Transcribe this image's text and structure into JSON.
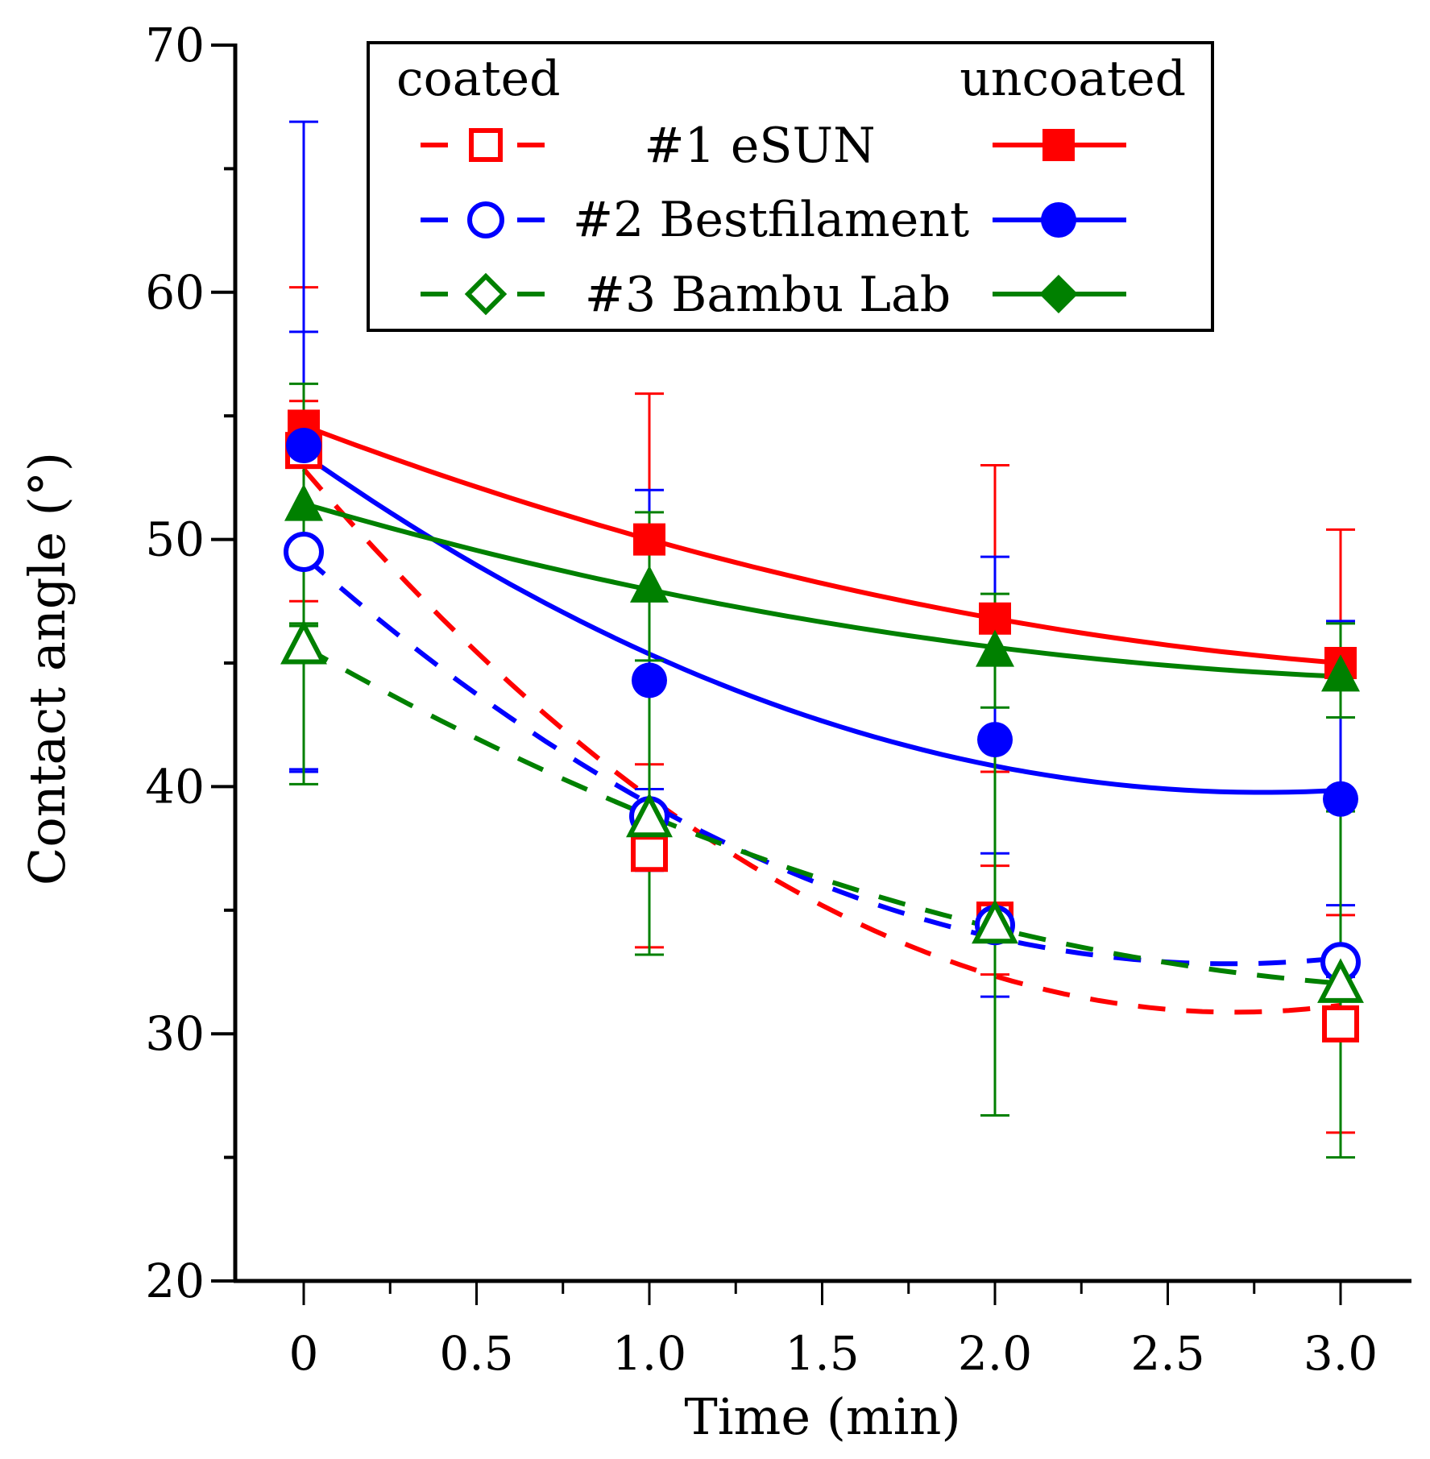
{
  "chart_data": {
    "type": "line",
    "title": "",
    "xlabel": "Time (min)",
    "ylabel": "Contact angle (°)",
    "xlim": [
      -0.2,
      3.2
    ],
    "ylim": [
      20,
      70
    ],
    "xticks": [
      0,
      0.5,
      1.0,
      1.5,
      2.0,
      2.5,
      3.0
    ],
    "xtick_labels": [
      "0",
      "0.5",
      "1.0",
      "1.5",
      "2.0",
      "2.5",
      "3.0"
    ],
    "yticks": [
      20,
      30,
      40,
      50,
      60,
      70
    ],
    "ytick_labels": [
      "20",
      "30",
      "40",
      "50",
      "60",
      "70"
    ],
    "grid": false,
    "legend": {
      "placement": "top-right",
      "header_left": "coated",
      "header_right": "uncoated",
      "entries": [
        "#1 eSUN",
        "#2 Bestfilament",
        "#3 Bambu Lab"
      ]
    },
    "x": [
      0,
      1,
      2,
      3
    ],
    "series": [
      {
        "name": "#1 eSUN uncoated",
        "color": "#ff0000",
        "marker": "square",
        "filled": true,
        "dashed": false,
        "values": [
          54.6,
          50.0,
          46.8,
          45.0
        ],
        "err_low": [
          49.0,
          44.1,
          40.6,
          39.6
        ],
        "err_high": [
          60.2,
          55.9,
          53.0,
          50.4
        ]
      },
      {
        "name": "#1 eSUN coated",
        "color": "#ff0000",
        "marker": "square",
        "filled": false,
        "dashed": true,
        "values": [
          53.6,
          37.3,
          34.6,
          30.4
        ],
        "err_low": [
          47.5,
          33.5,
          32.4,
          26.0
        ],
        "err_high": [
          55.6,
          40.9,
          36.8,
          34.8
        ]
      },
      {
        "name": "#2 Bestfilament uncoated",
        "color": "#0000ff",
        "marker": "circle",
        "filled": true,
        "dashed": false,
        "values": [
          53.8,
          44.3,
          41.9,
          39.5
        ],
        "err_low": [
          40.7,
          36.6,
          34.5,
          32.3
        ],
        "err_high": [
          66.9,
          52.0,
          49.3,
          46.7
        ]
      },
      {
        "name": "#2 Bestfilament coated",
        "color": "#0000ff",
        "marker": "circle",
        "filled": false,
        "dashed": true,
        "values": [
          49.5,
          38.8,
          34.4,
          32.9
        ],
        "err_low": [
          40.6,
          37.7,
          31.5,
          30.6
        ],
        "err_high": [
          58.4,
          39.9,
          37.3,
          35.2
        ]
      },
      {
        "name": "#3 Bambu Lab uncoated",
        "color": "#008000",
        "marker": "triangle",
        "filled": true,
        "dashed": false,
        "values": [
          51.4,
          48.1,
          45.5,
          44.5
        ],
        "err_low": [
          46.5,
          45.1,
          43.2,
          42.8
        ],
        "err_high": [
          56.3,
          51.1,
          47.8,
          46.6
        ]
      },
      {
        "name": "#3 Bambu Lab coated",
        "color": "#008000",
        "marker": "triangle",
        "filled": false,
        "dashed": true,
        "values": [
          45.7,
          38.7,
          34.4,
          32.0
        ],
        "err_low": [
          40.1,
          33.2,
          26.7,
          25.0
        ],
        "err_high": [
          46.6,
          44.2,
          42.1,
          39.0
        ]
      }
    ]
  }
}
